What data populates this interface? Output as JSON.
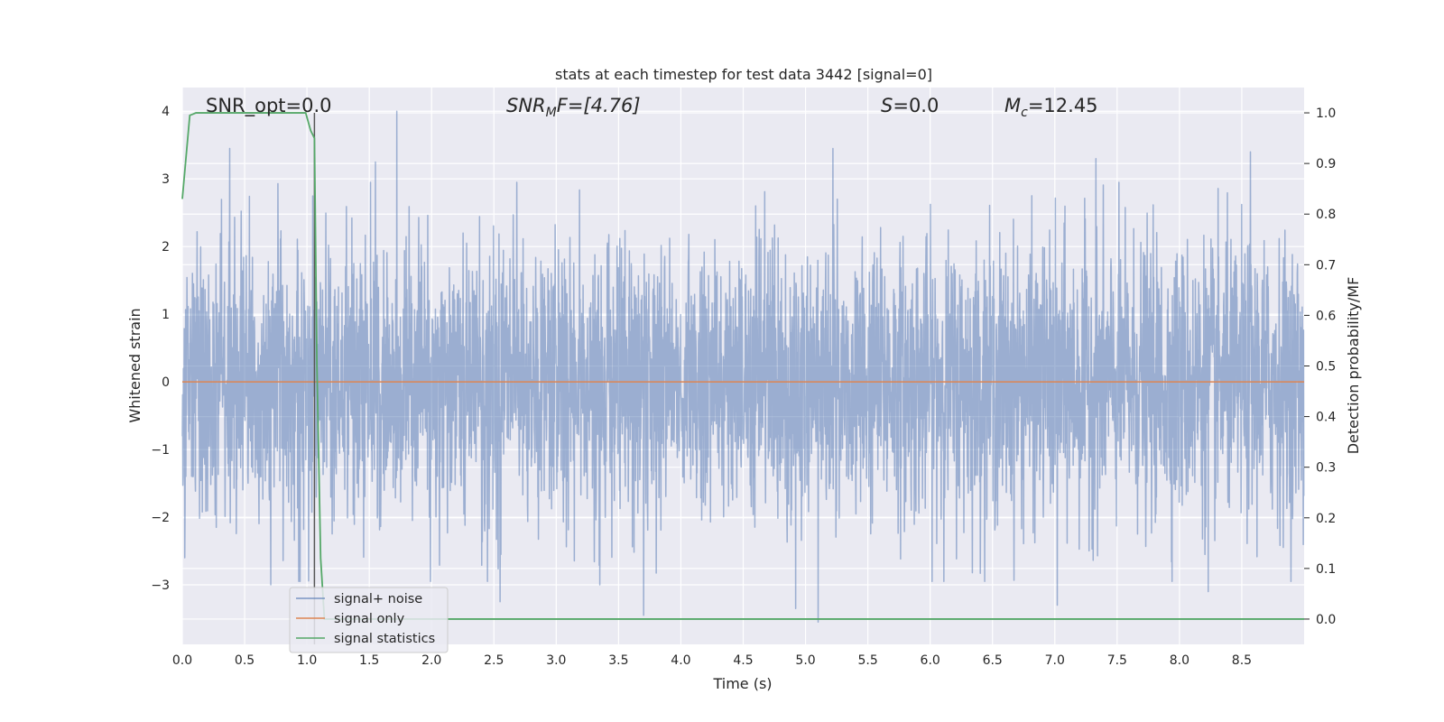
{
  "chart_data": {
    "type": "line",
    "title": "stats at each timestep for test data 3442 [signal=0]",
    "xlabel": "Time (s)",
    "ylabel": "Whitened strain",
    "y2label": "Detection probability/MF",
    "xlim": [
      0,
      9.0
    ],
    "ylim": [
      -3.88,
      4.35
    ],
    "y2lim": [
      -0.05,
      1.05
    ],
    "xticks": [
      0.0,
      0.5,
      1.0,
      1.5,
      2.0,
      2.5,
      3.0,
      3.5,
      4.0,
      4.5,
      5.0,
      5.5,
      6.0,
      6.5,
      7.0,
      7.5,
      8.0,
      8.5
    ],
    "xtick_labels": [
      "0.0",
      "0.5",
      "1.0",
      "1.5",
      "2.0",
      "2.5",
      "3.0",
      "3.5",
      "4.0",
      "4.5",
      "5.0",
      "5.5",
      "6.0",
      "6.5",
      "7.0",
      "7.5",
      "8.0",
      "8.5"
    ],
    "yticks": [
      4,
      3,
      2,
      1,
      0,
      -1,
      -2,
      -3
    ],
    "ytick_labels": [
      "4",
      "3",
      "2",
      "1",
      "0",
      "−1",
      "−2",
      "−3"
    ],
    "y2ticks": [
      1.0,
      0.9,
      0.8,
      0.7,
      0.6,
      0.5,
      0.4,
      0.3,
      0.2,
      0.1,
      0.0
    ],
    "y2tick_labels": [
      "1.0",
      "0.9",
      "0.8",
      "0.7",
      "0.6",
      "0.5",
      "0.4",
      "0.3",
      "0.2",
      "0.1",
      "0.0"
    ],
    "grid": true,
    "legend_position": "bottom-left",
    "annotations": {
      "snr_opt": "SNR_opt=0.0",
      "snr_mf_sym": "SNR",
      "snr_mf_sub": "M",
      "snr_mf_rest": "F=[4.76]",
      "s_sym": "S",
      "s_rest": "=0.0",
      "mc_sym": "M",
      "mc_sub": "c",
      "mc_rest": "=12.45"
    },
    "series": [
      {
        "name": "signal+ noise",
        "color": "#4c72b0",
        "alpha": 0.5,
        "sample_rate": 455,
        "noise_std": 1.0,
        "peaks": [
          {
            "x": 0.38,
            "y": 3.45
          },
          {
            "x": 1.72,
            "y": 4.0
          },
          {
            "x": 1.55,
            "y": 3.25
          },
          {
            "x": 5.22,
            "y": 3.45
          },
          {
            "x": 8.57,
            "y": 3.4
          },
          {
            "x": 7.33,
            "y": 3.3
          },
          {
            "x": 0.71,
            "y": -3.0
          },
          {
            "x": 3.7,
            "y": -3.45
          },
          {
            "x": 5.1,
            "y": -3.55
          },
          {
            "x": 4.92,
            "y": -3.35
          },
          {
            "x": 7.02,
            "y": -3.3
          },
          {
            "x": 2.55,
            "y": -3.25
          },
          {
            "x": 8.23,
            "y": -3.1
          },
          {
            "x": 0.02,
            "y": -2.6
          },
          {
            "x": 3.35,
            "y": -3.0
          }
        ]
      },
      {
        "name": "signal only",
        "color": "#dd8452",
        "constant": 0.0
      },
      {
        "name": "signal statistics",
        "color": "#55a868",
        "axis": "right",
        "x": [
          0.0,
          0.06,
          0.11,
          0.2,
          0.4,
          0.6,
          0.8,
          0.99,
          1.03,
          1.06,
          1.08,
          1.11,
          1.14,
          1.2,
          1.5,
          2.0,
          3.0,
          4.0,
          5.0,
          6.0,
          7.0,
          8.0,
          9.0
        ],
        "values": [
          0.83,
          0.995,
          1.0,
          1.0,
          1.0,
          1.0,
          1.0,
          1.0,
          0.965,
          0.95,
          0.5,
          0.12,
          0.0,
          0.0,
          0.0,
          0.0,
          0.0,
          0.0,
          0.0,
          0.0,
          0.0,
          0.0,
          0.0
        ]
      }
    ],
    "vline": {
      "x": 1.06,
      "color": "#555555"
    },
    "colors": {
      "axes_bg": "#eaeaf2",
      "grid": "#ffffff",
      "text": "#262626"
    }
  }
}
